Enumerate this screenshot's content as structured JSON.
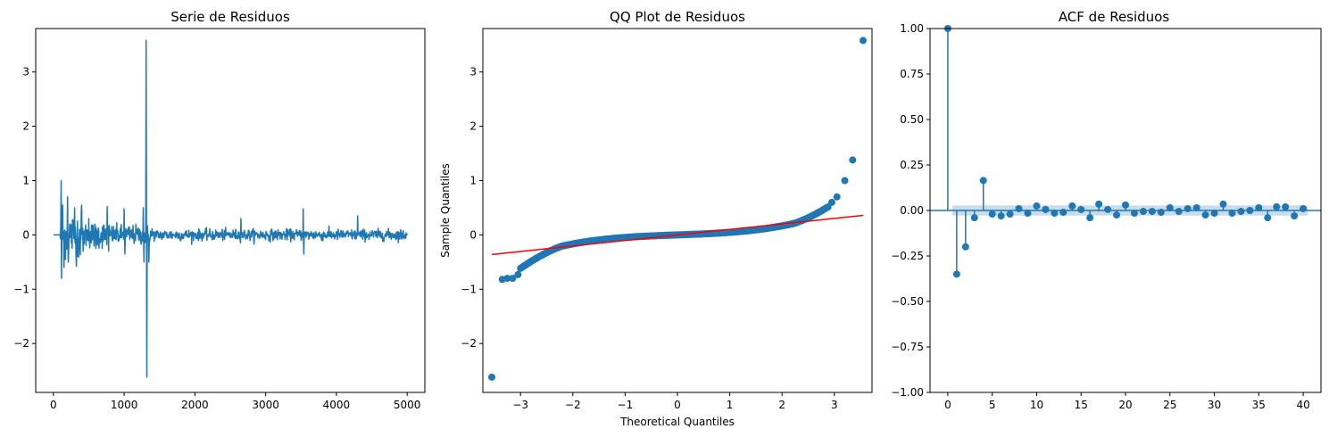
{
  "colors": {
    "series": "#1f77b4",
    "fit_line": "#ff0000",
    "band": "#1f77b4",
    "axis": "#000000"
  },
  "chart_data": [
    {
      "type": "line",
      "title": "Serie de Residuos",
      "xlabel": "",
      "ylabel": "",
      "xlim": [
        -250,
        5250
      ],
      "ylim": [
        -2.9,
        3.8
      ],
      "xticks": [
        0,
        1000,
        2000,
        3000,
        4000,
        5000
      ],
      "yticks": [
        -2,
        -1,
        0,
        1,
        2,
        3
      ],
      "grid": false,
      "description_points": {
        "n": 5000,
        "flat_until": 100,
        "spikes": [
          [
            110,
            1.0
          ],
          [
            115,
            -0.8
          ],
          [
            130,
            0.55
          ],
          [
            150,
            -0.6
          ],
          [
            200,
            0.7
          ],
          [
            210,
            -0.5
          ],
          [
            300,
            0.5
          ],
          [
            320,
            -0.4
          ],
          [
            400,
            0.55
          ],
          [
            420,
            -0.3
          ],
          [
            500,
            0.3
          ],
          [
            600,
            -0.25
          ],
          [
            760,
            0.52
          ],
          [
            780,
            -0.3
          ],
          [
            1000,
            0.48
          ],
          [
            1010,
            -0.35
          ],
          [
            1270,
            0.5
          ],
          [
            1280,
            -0.5
          ],
          [
            1310,
            3.58
          ],
          [
            1320,
            -2.62
          ],
          [
            1350,
            -0.5
          ],
          [
            2650,
            0.3
          ],
          [
            3530,
            0.48
          ],
          [
            3540,
            -0.35
          ],
          [
            4300,
            0.35
          ]
        ]
      }
    },
    {
      "type": "scatter",
      "title": "QQ Plot de Residuos",
      "xlabel": "Theoretical Quantiles",
      "ylabel": "Sample Quantiles",
      "xlim": [
        -3.72,
        3.72
      ],
      "ylim": [
        -2.9,
        3.8
      ],
      "xticks": [
        -3,
        -2,
        -1,
        0,
        1,
        2,
        3
      ],
      "yticks": [
        -2,
        -1,
        0,
        1,
        2,
        3
      ],
      "grid": false,
      "fit_line": {
        "x": [
          -3.55,
          3.55
        ],
        "y": [
          -0.36,
          0.36
        ]
      },
      "outliers": [
        [
          -3.55,
          -2.62
        ],
        [
          -3.35,
          -0.82
        ],
        [
          -3.25,
          -0.8
        ],
        [
          -3.15,
          -0.8
        ],
        [
          -3.05,
          -0.73
        ],
        [
          2.95,
          0.6
        ],
        [
          3.05,
          0.7
        ],
        [
          3.2,
          1.0
        ],
        [
          3.35,
          1.38
        ],
        [
          3.55,
          3.58
        ]
      ]
    },
    {
      "type": "stem",
      "title": "ACF de Residuos",
      "xlabel": "",
      "ylabel": "",
      "xlim": [
        -2,
        42
      ],
      "ylim": [
        -1.0,
        1.0
      ],
      "xticks": [
        0,
        5,
        10,
        15,
        20,
        25,
        30,
        35,
        40
      ],
      "yticks": [
        -1.0,
        -0.75,
        -0.5,
        -0.25,
        0.0,
        0.25,
        0.5,
        0.75,
        1.0
      ],
      "ytick_labels": [
        "−1.00",
        "−0.75",
        "−0.50",
        "−0.25",
        "0.00",
        "0.25",
        "0.50",
        "0.75",
        "1.00"
      ],
      "grid": false,
      "confidence_band": 0.028,
      "lags": [
        0,
        1,
        2,
        3,
        4,
        5,
        6,
        7,
        8,
        9,
        10,
        11,
        12,
        13,
        14,
        15,
        16,
        17,
        18,
        19,
        20,
        21,
        22,
        23,
        24,
        25,
        26,
        27,
        28,
        29,
        30,
        31,
        32,
        33,
        34,
        35,
        36,
        37,
        38,
        39,
        40
      ],
      "values": [
        1.0,
        -0.35,
        -0.2,
        -0.04,
        0.165,
        -0.02,
        -0.03,
        -0.02,
        0.01,
        -0.015,
        0.025,
        0.005,
        -0.015,
        -0.01,
        0.025,
        0.005,
        -0.04,
        0.035,
        0.005,
        -0.025,
        0.03,
        -0.015,
        -0.005,
        -0.005,
        -0.01,
        0.015,
        -0.005,
        0.01,
        0.015,
        -0.025,
        -0.015,
        0.035,
        -0.015,
        -0.005,
        0.0,
        0.015,
        -0.04,
        0.02,
        0.02,
        -0.03,
        0.01
      ]
    }
  ]
}
